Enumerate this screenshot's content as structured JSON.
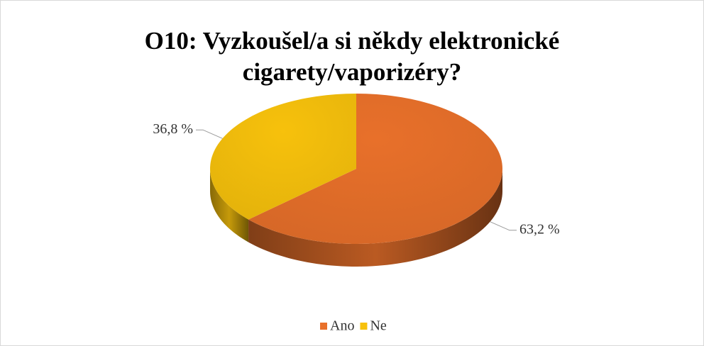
{
  "chart_data": {
    "type": "pie",
    "title": "O10: Vyzkoušel/a si někdy elektronické cigarety/vaporizéry?",
    "categories": [
      "Ano",
      "Ne"
    ],
    "values": [
      63.2,
      36.8
    ],
    "value_labels": [
      "63,2 %",
      "36,8 %"
    ],
    "colors": [
      "#e8702a",
      "#f7c10c"
    ],
    "legend": "bottom",
    "three_d": true
  }
}
